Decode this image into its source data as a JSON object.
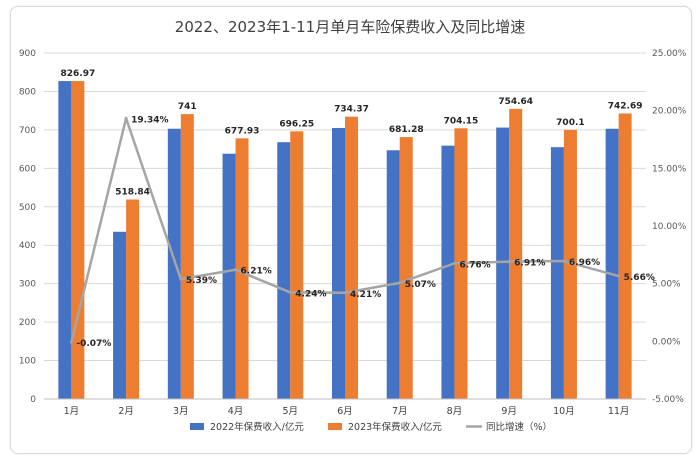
{
  "chart_data": {
    "type": "bar+line",
    "title": "2022、2023年1-11月单月车险保费收入及同比增速",
    "categories": [
      "1月",
      "2月",
      "3月",
      "4月",
      "5月",
      "6月",
      "7月",
      "8月",
      "9月",
      "10月",
      "11月"
    ],
    "series": [
      {
        "name": "2022年保费收入/亿元",
        "type": "bar",
        "axis": "left",
        "color": "#4472C4",
        "values": [
          827,
          435,
          703,
          638,
          668,
          705,
          647,
          659,
          706,
          655,
          703
        ]
      },
      {
        "name": "2023年保费收入/亿元",
        "type": "bar",
        "axis": "left",
        "color": "#ED7D31",
        "values": [
          826.97,
          518.84,
          741,
          677.93,
          696.25,
          734.37,
          681.28,
          704.15,
          754.64,
          700.1,
          742.69
        ],
        "labels": [
          "826.97",
          "518.84",
          "741",
          "677.93",
          "696.25",
          "734.37",
          "681.28",
          "704.15",
          "754.64",
          "700.1",
          "742.69"
        ]
      },
      {
        "name": "同比增速（%）",
        "type": "line",
        "axis": "right",
        "color": "#A5A5A5",
        "values": [
          -0.07,
          19.34,
          5.39,
          6.21,
          4.24,
          4.21,
          5.07,
          6.76,
          6.91,
          6.96,
          5.66
        ],
        "labels": [
          "-0.07%",
          "19.34%",
          "5.39%",
          "6.21%",
          "4.24%",
          "4.21%",
          "5.07%",
          "6.76%",
          "6.91%",
          "6.96%",
          "5.66%"
        ]
      }
    ],
    "y_left": {
      "min": 0,
      "max": 900,
      "step": 100,
      "ticks": [
        "0",
        "100",
        "200",
        "300",
        "400",
        "500",
        "600",
        "700",
        "800",
        "900"
      ]
    },
    "y_right": {
      "min": -5,
      "max": 25,
      "step": 5,
      "ticks": [
        "-5.00%",
        "0.00%",
        "5.00%",
        "10.00%",
        "15.00%",
        "20.00%",
        "25.00%"
      ]
    },
    "grid": true,
    "legend_position": "bottom"
  }
}
